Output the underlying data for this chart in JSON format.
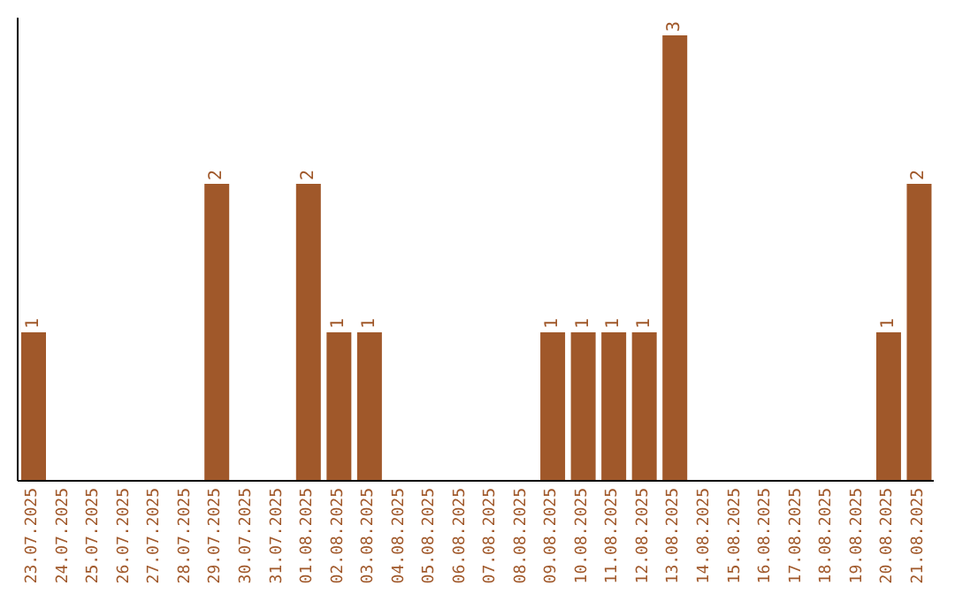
{
  "chart_data": {
    "type": "bar",
    "categories": [
      "23.07.2025",
      "24.07.2025",
      "25.07.2025",
      "26.07.2025",
      "27.07.2025",
      "28.07.2025",
      "29.07.2025",
      "30.07.2025",
      "31.07.2025",
      "01.08.2025",
      "02.08.2025",
      "03.08.2025",
      "04.08.2025",
      "05.08.2025",
      "06.08.2025",
      "07.08.2025",
      "08.08.2025",
      "09.08.2025",
      "10.08.2025",
      "11.08.2025",
      "12.08.2025",
      "13.08.2025",
      "14.08.2025",
      "15.08.2025",
      "16.08.2025",
      "17.08.2025",
      "18.08.2025",
      "19.08.2025",
      "20.08.2025",
      "21.08.2025"
    ],
    "values": [
      1,
      0,
      0,
      0,
      0,
      0,
      2,
      0,
      0,
      2,
      1,
      1,
      0,
      0,
      0,
      0,
      0,
      1,
      1,
      1,
      1,
      3,
      0,
      0,
      0,
      0,
      0,
      0,
      1,
      2
    ],
    "value_labels": [
      "1",
      null,
      null,
      null,
      null,
      null,
      "2",
      null,
      null,
      "2",
      "1",
      "1",
      null,
      null,
      null,
      null,
      null,
      "1",
      "1",
      "1",
      "1",
      "3",
      null,
      null,
      null,
      null,
      null,
      null,
      "1",
      "2"
    ],
    "color": "#a0582a",
    "grid": false,
    "legend": false
  }
}
